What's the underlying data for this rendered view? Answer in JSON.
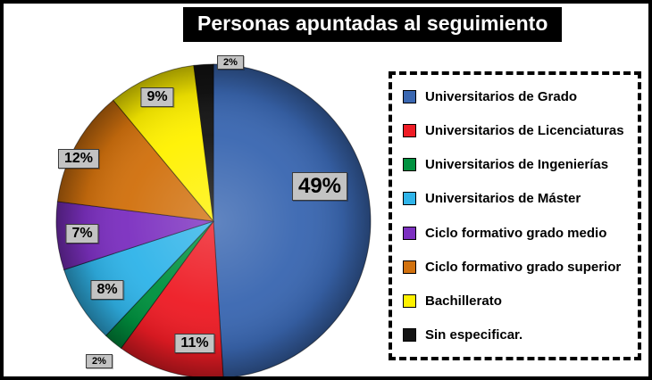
{
  "chart_data": {
    "type": "pie",
    "title": "Personas apuntadas al seguimiento",
    "legend_position": "right",
    "start_angle_deg": 0,
    "direction": "clockwise",
    "label_background": "#c3c3c3",
    "segments": [
      {
        "label": "Universitarios de Grado",
        "value": 49,
        "pct_label": "49%",
        "color": "#3A67B1"
      },
      {
        "label": "Universitarios de Licenciaturas",
        "value": 11,
        "pct_label": "11%",
        "color": "#EE1C25"
      },
      {
        "label": "Universitarios de Ingenierías",
        "value": 2,
        "pct_label": "2%",
        "color": "#00913F"
      },
      {
        "label": "Universitarios de Máster",
        "value": 8,
        "pct_label": "8%",
        "color": "#30B4E9"
      },
      {
        "label": "Ciclo formativo grado medio",
        "value": 7,
        "pct_label": "7%",
        "color": "#7C30C0"
      },
      {
        "label": "Ciclo formativo grado superior",
        "value": 12,
        "pct_label": "12%",
        "color": "#D1710E"
      },
      {
        "label": "Bachillerato",
        "value": 9,
        "pct_label": "9%",
        "color": "#FFF100"
      },
      {
        "label": "Sin especificar.",
        "value": 2,
        "pct_label": "2%",
        "color": "#141414"
      }
    ]
  }
}
